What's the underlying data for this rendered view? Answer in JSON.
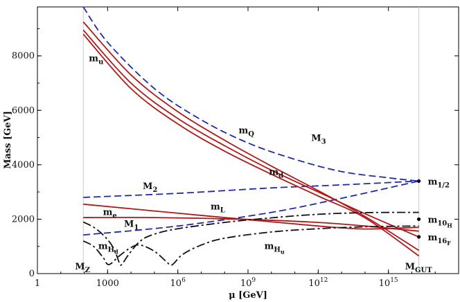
{
  "chart_data": {
    "type": "line",
    "title": "",
    "xlabel": "μ [GeV]",
    "ylabel": "Mass [GeV]",
    "x_scale": "log10",
    "x_range_log10": [
      0,
      18
    ],
    "ylim": [
      0,
      9800
    ],
    "x_ticks": [
      {
        "log10": 0,
        "label": "1"
      },
      {
        "log10": 3,
        "label": "1000"
      },
      {
        "log10": 6,
        "label": "10",
        "sup": "6"
      },
      {
        "log10": 9,
        "label": "10",
        "sup": "9"
      },
      {
        "log10": 12,
        "label": "10",
        "sup": "12"
      },
      {
        "log10": 15,
        "label": "10",
        "sup": "15"
      }
    ],
    "y_ticks": [
      {
        "value": 0,
        "label": "0"
      },
      {
        "value": 2000,
        "label": "2000"
      },
      {
        "value": 4000,
        "label": "4000"
      },
      {
        "value": 6000,
        "label": "6000"
      },
      {
        "value": 8000,
        "label": "8000"
      }
    ],
    "vlines": [
      {
        "log10": 1.96,
        "label": "M",
        "sub": "Z"
      },
      {
        "log10": 16.3,
        "label": "M",
        "sub": "GUT"
      }
    ],
    "series": [
      {
        "name": "M3",
        "style": "dashed",
        "color": "#1a2aa8",
        "points": [
          [
            1.96,
            9800
          ],
          [
            3,
            8500
          ],
          [
            5,
            6800
          ],
          [
            7,
            5650
          ],
          [
            9,
            4800
          ],
          [
            11,
            4200
          ],
          [
            13,
            3750
          ],
          [
            15,
            3520
          ],
          [
            16.3,
            3400
          ]
        ]
      },
      {
        "name": "M2",
        "style": "dashed",
        "color": "#1a2aa8",
        "points": [
          [
            1.96,
            2800
          ],
          [
            6,
            2950
          ],
          [
            10,
            3150
          ],
          [
            13,
            3260
          ],
          [
            16.3,
            3400
          ]
        ]
      },
      {
        "name": "M1",
        "style": "dashed",
        "color": "#1a2aa8",
        "points": [
          [
            1.96,
            1420
          ],
          [
            6,
            1750
          ],
          [
            10,
            2250
          ],
          [
            13,
            2770
          ],
          [
            16.3,
            3400
          ]
        ]
      },
      {
        "name": "mu",
        "style": "solid",
        "color": "#b01818",
        "points": [
          [
            1.96,
            9250
          ],
          [
            4,
            7300
          ],
          [
            6,
            5950
          ],
          [
            8,
            4900
          ],
          [
            10,
            3950
          ],
          [
            12,
            3050
          ],
          [
            14,
            2100
          ],
          [
            16.3,
            850
          ]
        ]
      },
      {
        "name": "mQ",
        "style": "solid",
        "color": "#b01818",
        "points": [
          [
            1.96,
            8950
          ],
          [
            4,
            7000
          ],
          [
            6,
            5700
          ],
          [
            8,
            4700
          ],
          [
            10,
            3800
          ],
          [
            12,
            3000
          ],
          [
            14,
            2200
          ],
          [
            16.3,
            1350
          ]
        ]
      },
      {
        "name": "md",
        "style": "solid",
        "color": "#b01818",
        "points": [
          [
            1.96,
            8800
          ],
          [
            4,
            6800
          ],
          [
            6,
            5500
          ],
          [
            8,
            4500
          ],
          [
            10,
            3650
          ],
          [
            12,
            2850
          ],
          [
            14,
            2050
          ],
          [
            16.3,
            650
          ]
        ]
      },
      {
        "name": "mL",
        "style": "solid",
        "color": "#b01818",
        "points": [
          [
            1.96,
            2550
          ],
          [
            5,
            2300
          ],
          [
            9,
            1980
          ],
          [
            12,
            1750
          ],
          [
            14,
            1640
          ],
          [
            16.3,
            1700
          ]
        ]
      },
      {
        "name": "me",
        "style": "solid",
        "color": "#b01818",
        "points": [
          [
            1.96,
            2060
          ],
          [
            5,
            2060
          ],
          [
            9,
            1990
          ],
          [
            12,
            1880
          ],
          [
            14,
            1750
          ],
          [
            16.3,
            1560
          ]
        ]
      },
      {
        "name": "mHd",
        "style": "dashdot",
        "color": "#111111",
        "points": [
          [
            1.96,
            1900
          ],
          [
            2.5,
            1650
          ],
          [
            3,
            1250
          ],
          [
            3.3,
            850
          ],
          [
            3.5,
            400
          ],
          [
            3.6,
            330
          ],
          [
            3.9,
            700
          ],
          [
            4.4,
            1200
          ],
          [
            5,
            1450
          ],
          [
            6,
            1650
          ],
          [
            8,
            1880
          ],
          [
            10,
            2050
          ],
          [
            12,
            2180
          ],
          [
            14,
            2240
          ],
          [
            16.3,
            2250
          ]
        ]
      },
      {
        "name": "mHu",
        "style": "dashdot",
        "color": "#111111",
        "points": [
          [
            1.96,
            1200
          ],
          [
            2.4,
            1000
          ],
          [
            2.8,
            600
          ],
          [
            3.05,
            330
          ],
          [
            3.5,
            650
          ],
          [
            4.0,
            960
          ],
          [
            4.4,
            1050
          ],
          [
            5,
            820
          ],
          [
            5.5,
            450
          ],
          [
            5.75,
            320
          ],
          [
            6.2,
            700
          ],
          [
            7,
            1050
          ],
          [
            8,
            1300
          ],
          [
            10,
            1530
          ],
          [
            12,
            1650
          ],
          [
            14,
            1720
          ],
          [
            16.3,
            1750
          ]
        ]
      }
    ],
    "endpoints": [
      {
        "log10": 16.3,
        "value": 3400,
        "label": "m",
        "sub": "1/2"
      },
      {
        "log10": 16.3,
        "value": 2000,
        "label": "m",
        "sub": "10",
        "sub2": "H"
      },
      {
        "log10": 16.3,
        "value": 1350,
        "label": "m",
        "sub": "16",
        "sub2": "F"
      }
    ],
    "series_labels": [
      {
        "name": "mu",
        "label": "m",
        "sub": "u",
        "at": [
          2.2,
          7800
        ]
      },
      {
        "name": "mQ",
        "label": "m",
        "sub": "Q",
        "at": [
          8.6,
          5150
        ]
      },
      {
        "name": "M3",
        "label": "M",
        "sub": "3",
        "at": [
          11.7,
          4880
        ]
      },
      {
        "name": "md",
        "label": "m",
        "sub": "d",
        "at": [
          9.9,
          3630
        ]
      },
      {
        "name": "M2",
        "label": "M",
        "sub": "2",
        "at": [
          4.5,
          3110
        ]
      },
      {
        "name": "mL",
        "label": "m",
        "sub": "L",
        "at": [
          7.4,
          2350
        ]
      },
      {
        "name": "me",
        "label": "m",
        "sub": "e",
        "at": [
          2.8,
          2150
        ]
      },
      {
        "name": "M1",
        "label": "M",
        "sub": "1",
        "at": [
          3.7,
          1720
        ]
      },
      {
        "name": "mHd",
        "label": "m",
        "sub": "H",
        "sub2": "d",
        "at": [
          2.6,
          900
        ]
      },
      {
        "name": "mHu",
        "label": "m",
        "sub": "H",
        "sub2": "u",
        "at": [
          9.7,
          900
        ]
      }
    ]
  }
}
